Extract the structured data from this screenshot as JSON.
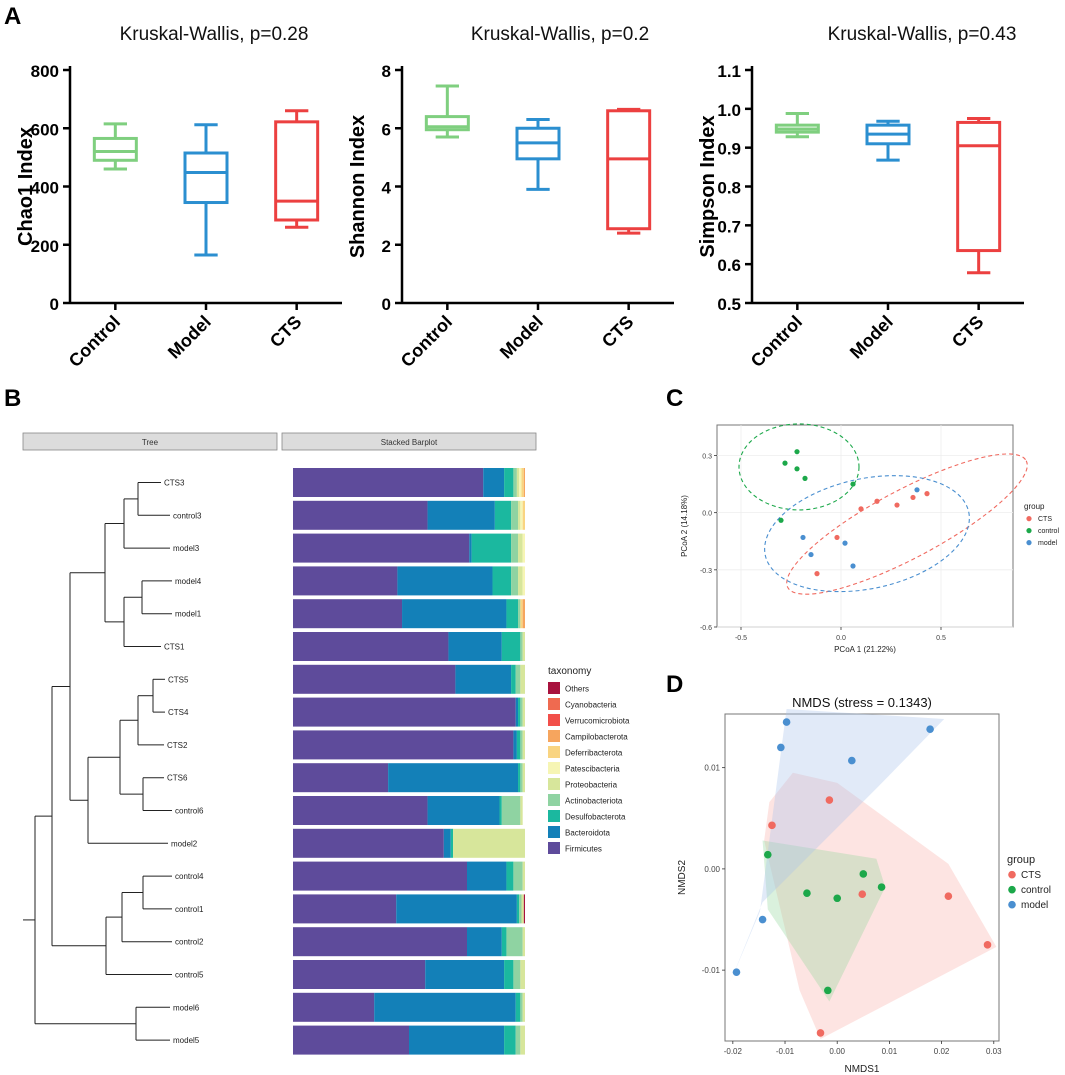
{
  "panel_letters": {
    "a": "A",
    "b": "B",
    "c": "C",
    "d": "D"
  },
  "colors": {
    "control": "#7fcf7f",
    "model": "#2b8fd0",
    "cts": "#ec4040",
    "pcoa_cts": "#f06a60",
    "pcoa_control": "#1ca84a",
    "pcoa_model": "#4a8fd0"
  },
  "chart_data": [
    {
      "type": "box",
      "title": "Kruskal-Wallis, p=0.28",
      "ylabel": "Chao1 Index",
      "ylim": [
        0,
        800
      ],
      "yticks": [
        "0",
        "200",
        "400",
        "600",
        "800"
      ],
      "categories": [
        "Control",
        "Model",
        "CTS"
      ],
      "boxes": [
        {
          "min": 460,
          "q1": 490,
          "median": 520,
          "q3": 565,
          "max": 615
        },
        {
          "min": 165,
          "q1": 345,
          "median": 448,
          "q3": 515,
          "max": 612
        },
        {
          "min": 260,
          "q1": 285,
          "median": 350,
          "q3": 622,
          "max": 660
        }
      ]
    },
    {
      "type": "box",
      "title": "Kruskal-Wallis, p=0.2",
      "ylabel": "Shannon Index",
      "ylim": [
        0,
        8
      ],
      "yticks": [
        "0",
        "2",
        "4",
        "6",
        "8"
      ],
      "categories": [
        "Control",
        "Model",
        "CTS"
      ],
      "boxes": [
        {
          "min": 5.7,
          "q1": 5.95,
          "median": 6.05,
          "q3": 6.4,
          "max": 7.45
        },
        {
          "min": 3.9,
          "q1": 4.95,
          "median": 5.5,
          "q3": 6.0,
          "max": 6.3
        },
        {
          "min": 2.4,
          "q1": 2.55,
          "median": 4.95,
          "q3": 6.6,
          "max": 6.65
        }
      ]
    },
    {
      "type": "box",
      "title": "Kruskal-Wallis, p=0.43",
      "ylabel": "Simpson Index",
      "ylim": [
        0.5,
        1.1
      ],
      "yticks": [
        "0.5",
        "0.6",
        "0.7",
        "0.8",
        "0.9",
        "1.0",
        "1.1"
      ],
      "categories": [
        "Control",
        "Model",
        "CTS"
      ],
      "boxes": [
        {
          "min": 0.928,
          "q1": 0.94,
          "median": 0.948,
          "q3": 0.958,
          "max": 0.988
        },
        {
          "min": 0.868,
          "q1": 0.91,
          "median": 0.935,
          "q3": 0.958,
          "max": 0.968
        },
        {
          "min": 0.578,
          "q1": 0.635,
          "median": 0.905,
          "q3": 0.965,
          "max": 0.975
        }
      ]
    },
    {
      "type": "bar",
      "stacked": true,
      "headers": {
        "tree": "Tree",
        "barplot": "Stacked Barplot"
      },
      "legend_title": "taxonomy",
      "taxa": [
        {
          "name": "Others",
          "color": "#a8123e"
        },
        {
          "name": "Cyanobacteria",
          "color": "#ef6a50"
        },
        {
          "name": "Verrucomicrobiota",
          "color": "#f24f4a"
        },
        {
          "name": "Campilobacterota",
          "color": "#f6a55e"
        },
        {
          "name": "Deferribacterota",
          "color": "#f9d481"
        },
        {
          "name": "Patescibacteria",
          "color": "#f6f5b4"
        },
        {
          "name": "Proteobacteria",
          "color": "#d7e69b"
        },
        {
          "name": "Actinobacteriota",
          "color": "#8fd3a2"
        },
        {
          "name": "Desulfobacterota",
          "color": "#1bb89f"
        },
        {
          "name": "Bacteroidota",
          "color": "#1380b8"
        },
        {
          "name": "Firmicutes",
          "color": "#5e4b9b"
        }
      ],
      "samples": [
        {
          "name": "CTS3",
          "values": {
            "Firmicutes": 82,
            "Bacteroidota": 9,
            "Desulfobacterota": 4,
            "Actinobacteriota": 1.5,
            "Proteobacteria": 1,
            "Patescibacteria": 1,
            "Deferribacterota": 1,
            "Campilobacterota": 0.5
          }
        },
        {
          "name": "control3",
          "values": {
            "Firmicutes": 58,
            "Bacteroidota": 29,
            "Desulfobacterota": 7,
            "Actinobacteriota": 3,
            "Proteobacteria": 1,
            "Patescibacteria": 1,
            "Deferribacterota": 1
          }
        },
        {
          "name": "model3",
          "values": {
            "Firmicutes": 76,
            "Bacteroidota": 1,
            "Desulfobacterota": 17,
            "Actinobacteriota": 3,
            "Proteobacteria": 2,
            "Patescibacteria": 1
          }
        },
        {
          "name": "model4",
          "values": {
            "Firmicutes": 45,
            "Bacteroidota": 41,
            "Desulfobacterota": 8,
            "Actinobacteriota": 3,
            "Proteobacteria": 2,
            "Patescibacteria": 1
          }
        },
        {
          "name": "model1",
          "values": {
            "Firmicutes": 47,
            "Bacteroidota": 45,
            "Desulfobacterota": 5,
            "Actinobacteriota": 1,
            "Deferribacterota": 1,
            "Campilobacterota": 1
          }
        },
        {
          "name": "CTS1",
          "values": {
            "Firmicutes": 67,
            "Bacteroidota": 23,
            "Desulfobacterota": 8,
            "Actinobacteriota": 1,
            "Proteobacteria": 1
          }
        },
        {
          "name": "CTS5",
          "values": {
            "Firmicutes": 70,
            "Bacteroidota": 24,
            "Desulfobacterota": 2,
            "Actinobacteriota": 2,
            "Proteobacteria": 2
          }
        },
        {
          "name": "CTS4",
          "values": {
            "Firmicutes": 96,
            "Bacteroidota": 1,
            "Desulfobacterota": 1,
            "Actinobacteriota": 1,
            "Proteobacteria": 1
          }
        },
        {
          "name": "CTS2",
          "values": {
            "Firmicutes": 95,
            "Bacteroidota": 1.5,
            "Desulfobacterota": 1.5,
            "Actinobacteriota": 1,
            "Proteobacteria": 1
          }
        },
        {
          "name": "CTS6",
          "values": {
            "Firmicutes": 41,
            "Bacteroidota": 56,
            "Desulfobacterota": 1,
            "Actinobacteriota": 1,
            "Proteobacteria": 1
          }
        },
        {
          "name": "control6",
          "values": {
            "Firmicutes": 58,
            "Bacteroidota": 31,
            "Desulfobacterota": 1,
            "Actinobacteriota": 8,
            "Proteobacteria": 1
          }
        },
        {
          "name": "model2",
          "values": {
            "Firmicutes": 65,
            "Bacteroidota": 3,
            "Desulfobacterota": 1,
            "Proteobacteria": 31
          }
        },
        {
          "name": "control4",
          "values": {
            "Firmicutes": 75,
            "Bacteroidota": 17,
            "Desulfobacterota": 3,
            "Actinobacteriota": 4,
            "Proteobacteria": 1
          }
        },
        {
          "name": "control1",
          "values": {
            "Firmicutes": 44.5,
            "Bacteroidota": 52,
            "Desulfobacterota": 1,
            "Actinobacteriota": 1,
            "Proteobacteria": 1,
            "Others": 0.5
          }
        },
        {
          "name": "control2",
          "values": {
            "Firmicutes": 75,
            "Bacteroidota": 15,
            "Desulfobacterota": 2,
            "Actinobacteriota": 7,
            "Proteobacteria": 1
          }
        },
        {
          "name": "control5",
          "values": {
            "Firmicutes": 57,
            "Bacteroidota": 34,
            "Desulfobacterota": 4,
            "Actinobacteriota": 3,
            "Proteobacteria": 2
          }
        },
        {
          "name": "model6",
          "values": {
            "Firmicutes": 35,
            "Bacteroidota": 61,
            "Desulfobacterota": 2,
            "Actinobacteriota": 1,
            "Proteobacteria": 1
          }
        },
        {
          "name": "model5",
          "values": {
            "Firmicutes": 50,
            "Bacteroidota": 41,
            "Desulfobacterota": 5,
            "Actinobacteriota": 2,
            "Proteobacteria": 2
          }
        }
      ]
    },
    {
      "type": "scatter",
      "title": "",
      "xlabel": "PCoA 1 (21.22%)",
      "ylabel": "PCoA 2 (14.18%)",
      "xlim": [
        -0.62,
        0.86
      ],
      "ylim": [
        -0.6,
        0.46
      ],
      "xticks": [
        -0.5,
        0.0,
        0.5
      ],
      "xtick_labels": [
        "-0.5",
        "0.0",
        "0.5"
      ],
      "yticks": [
        -0.6,
        -0.3,
        0.0,
        0.3
      ],
      "ytick_labels": [
        "-0.6",
        "-0.3",
        "0.0",
        "0.3"
      ],
      "legend_title": "group",
      "series": [
        {
          "name": "CTS",
          "points": [
            [
              0.18,
              0.06
            ],
            [
              0.28,
              0.04
            ],
            [
              0.36,
              0.08
            ],
            [
              0.43,
              0.1
            ],
            [
              0.1,
              0.02
            ],
            [
              -0.02,
              -0.13
            ],
            [
              -0.12,
              -0.32
            ]
          ]
        },
        {
          "name": "control",
          "points": [
            [
              -0.22,
              0.32
            ],
            [
              -0.28,
              0.26
            ],
            [
              -0.22,
              0.23
            ],
            [
              -0.18,
              0.18
            ],
            [
              0.06,
              0.15
            ],
            [
              -0.3,
              -0.04
            ]
          ]
        },
        {
          "name": "model",
          "points": [
            [
              0.38,
              0.12
            ],
            [
              0.02,
              -0.16
            ],
            [
              0.06,
              -0.28
            ],
            [
              -0.19,
              -0.13
            ],
            [
              -0.15,
              -0.22
            ]
          ]
        }
      ]
    },
    {
      "type": "scatter",
      "title": "NMDS (stress = 0.1343)",
      "xlabel": "NMDS1",
      "ylabel": "NMDS2",
      "xlim": [
        -0.0215,
        0.031
      ],
      "ylim": [
        -0.017,
        0.0153
      ],
      "xticks": [
        -0.02,
        -0.01,
        0.0,
        0.01,
        0.02,
        0.03
      ],
      "xtick_labels": [
        "-0.02",
        "-0.01",
        "0.00",
        "0.01",
        "0.02",
        "0.03"
      ],
      "yticks": [
        -0.01,
        0.0,
        0.01
      ],
      "ytick_labels": [
        "-0.01",
        "0.00",
        "0.01"
      ],
      "legend_title": "group",
      "series": [
        {
          "name": "CTS",
          "points": [
            [
              -0.0015,
              0.0068
            ],
            [
              -0.0125,
              0.0043
            ],
            [
              0.0048,
              -0.0025
            ],
            [
              0.0213,
              -0.0027
            ],
            [
              0.0288,
              -0.0075
            ],
            [
              -0.0032,
              -0.0162
            ]
          ]
        },
        {
          "name": "control",
          "points": [
            [
              -0.0133,
              0.0014
            ],
            [
              0.005,
              -0.0005
            ],
            [
              0.0085,
              -0.0018
            ],
            [
              -0.0058,
              -0.0024
            ],
            [
              0.0,
              -0.0029
            ],
            [
              -0.0018,
              -0.012
            ]
          ]
        },
        {
          "name": "model",
          "points": [
            [
              -0.0097,
              0.0145
            ],
            [
              0.0178,
              0.0138
            ],
            [
              -0.0108,
              0.012
            ],
            [
              0.0028,
              0.0107
            ],
            [
              -0.0143,
              -0.005
            ],
            [
              -0.0193,
              -0.0102
            ]
          ]
        }
      ]
    }
  ]
}
